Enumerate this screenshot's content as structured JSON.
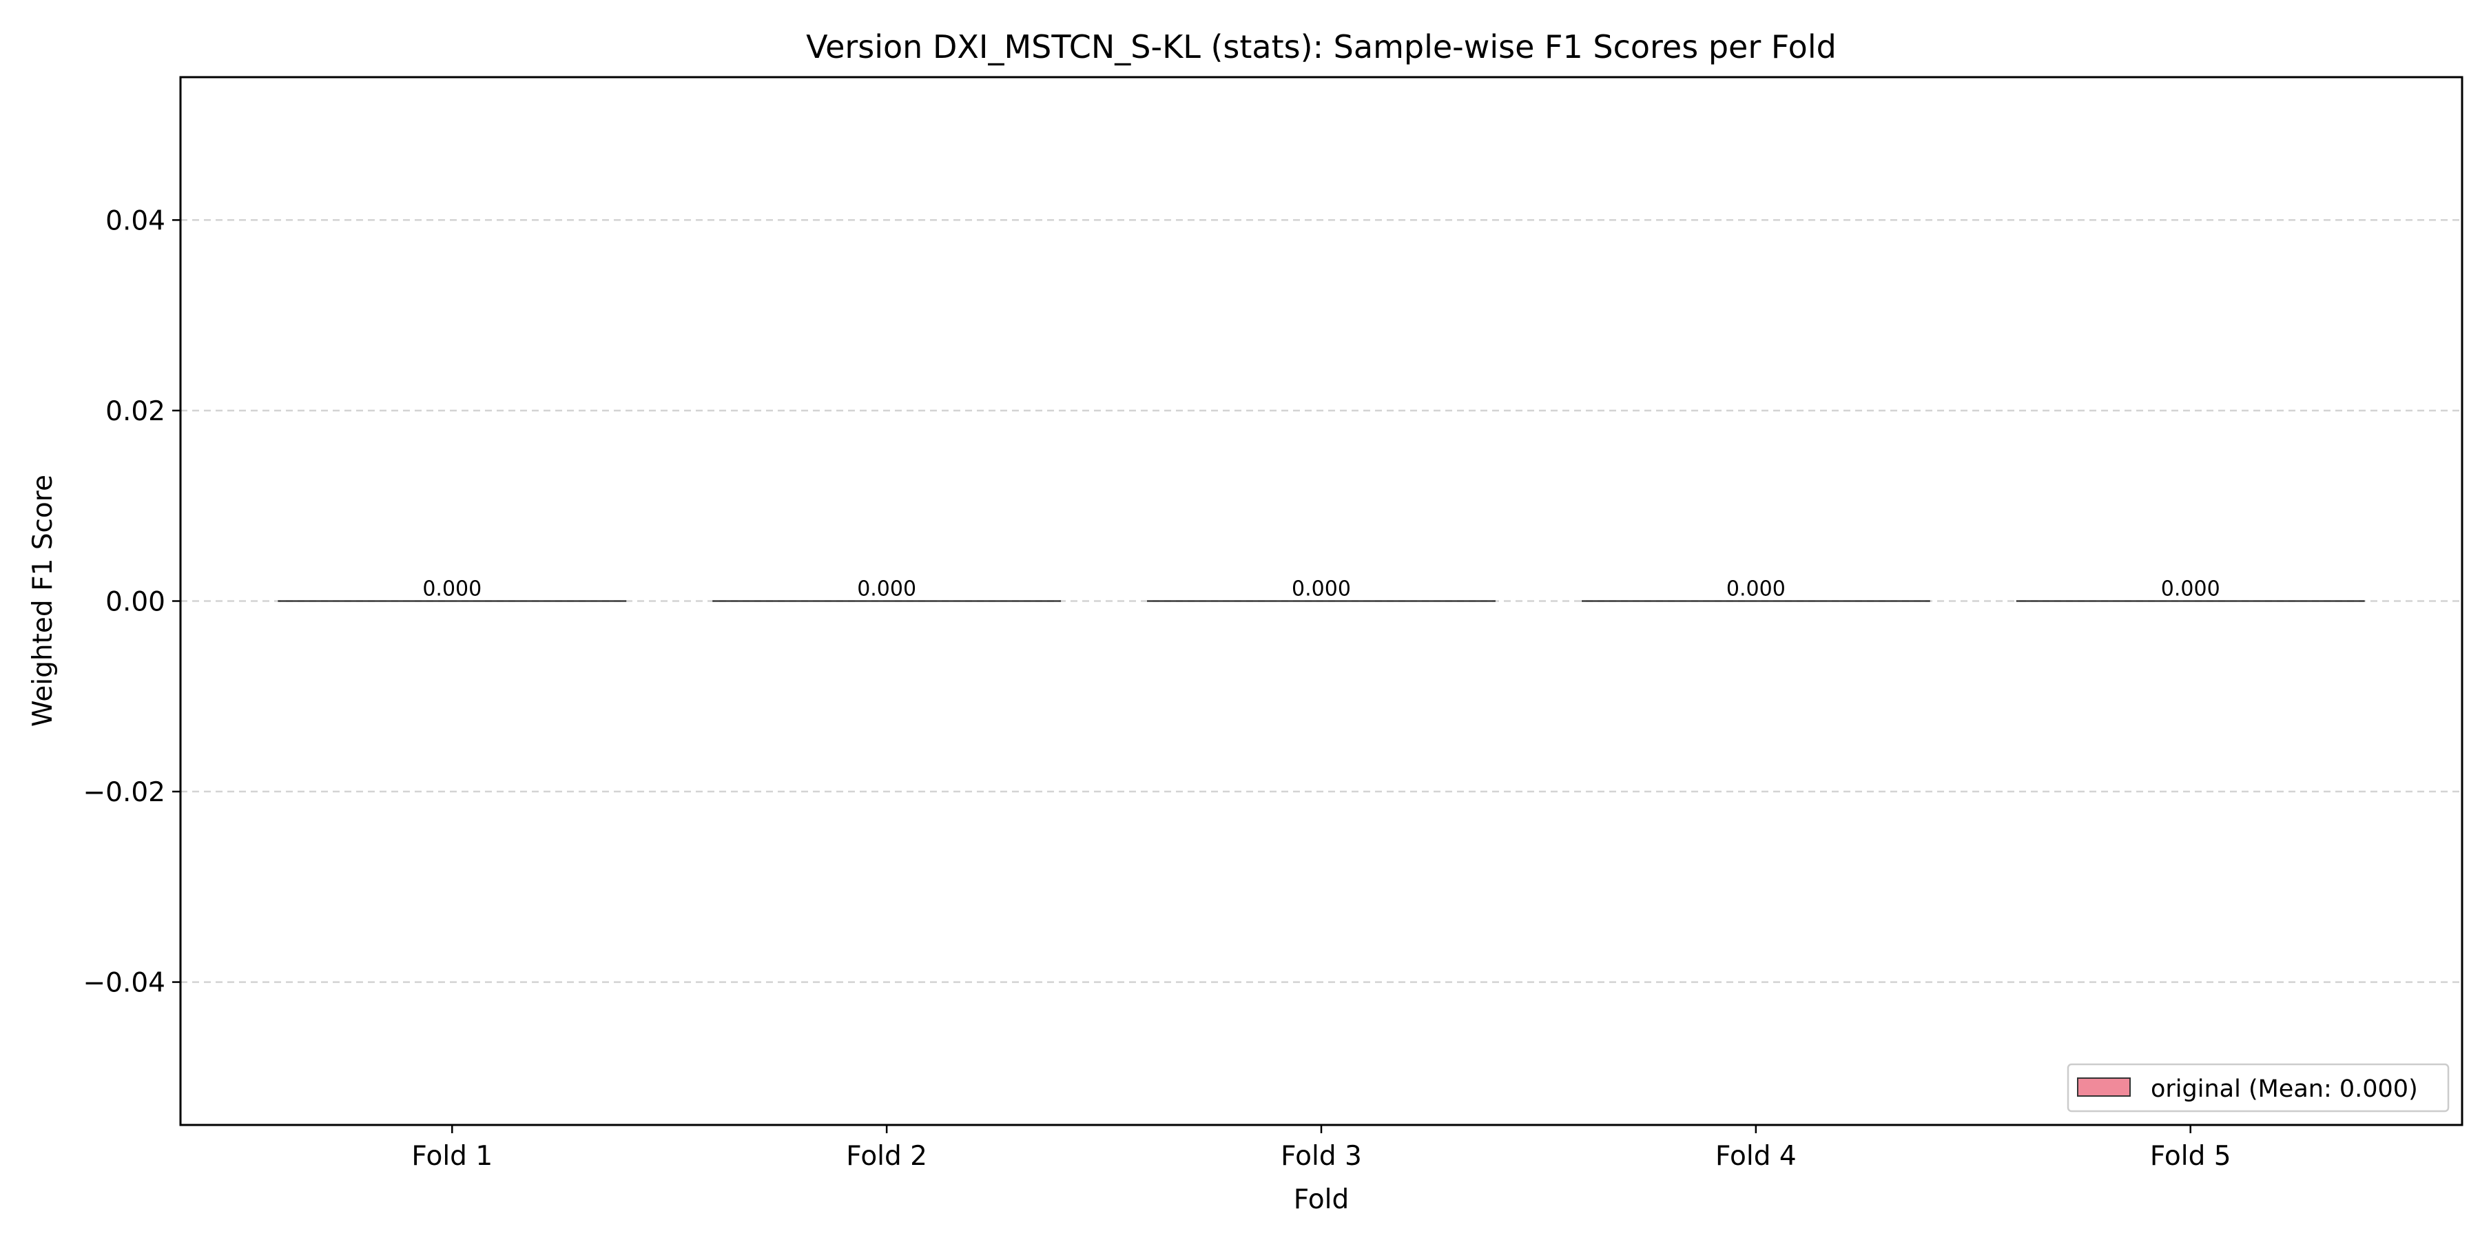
{
  "chart_data": {
    "type": "bar",
    "title": "Version DXI_MSTCN_S-KL (stats): Sample-wise F1 Scores per Fold",
    "xlabel": "Fold",
    "ylabel": "Weighted F1 Score",
    "categories": [
      "Fold 1",
      "Fold 2",
      "Fold 3",
      "Fold 4",
      "Fold 5"
    ],
    "series": [
      {
        "name": "original (Mean: 0.000)",
        "values": [
          0.0,
          0.0,
          0.0,
          0.0,
          0.0
        ],
        "color": "#f08a9a"
      }
    ],
    "value_labels": [
      "0.000",
      "0.000",
      "0.000",
      "0.000",
      "0.000"
    ],
    "ylim": [
      -0.055,
      0.055
    ],
    "yticks": [
      -0.04,
      -0.02,
      0.0,
      0.02,
      0.04
    ],
    "ytick_labels": [
      "−0.04",
      "−0.02",
      "0.00",
      "0.02",
      "0.04"
    ],
    "grid": true,
    "grid_axis": "y",
    "grid_style": "dashed",
    "legend_position": "lower-right"
  }
}
